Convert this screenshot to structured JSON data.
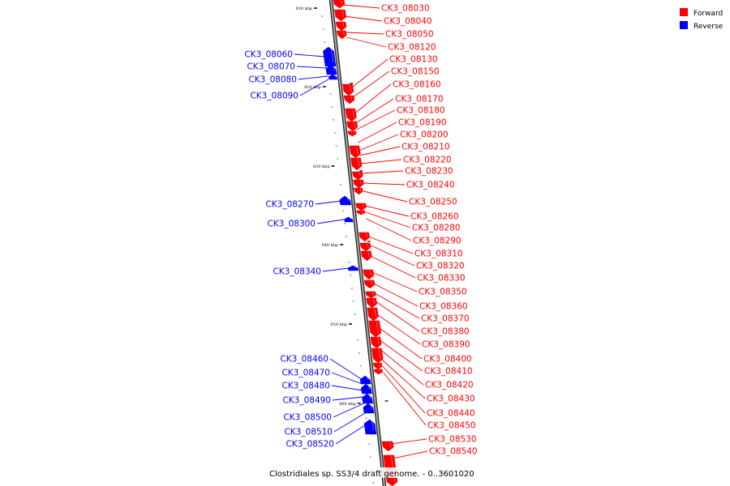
{
  "caption": "Clostridiales sp. SS3/4 draft genome. - 0..3601020",
  "legend": [
    {
      "label": "Forward",
      "color": "#ff0000"
    },
    {
      "label": "Reverse",
      "color": "#0000ff"
    }
  ],
  "colors": {
    "forward": "#ff0000",
    "reverse": "#0000ff",
    "backbone": "#888888"
  },
  "ticks": [
    "810 kbp",
    "820 kbp",
    "830 kbp",
    "840 kbp",
    "850 kbp",
    "860 kbp"
  ],
  "forward_genes": [
    "CK3_08030",
    "CK3_08040",
    "CK3_08050",
    "CK3_08120",
    "CK3_08130",
    "CK3_08150",
    "CK3_08160",
    "CK3_08170",
    "CK3_08180",
    "CK3_08190",
    "CK3_08200",
    "CK3_08210",
    "CK3_08220",
    "CK3_08230",
    "CK3_08240",
    "CK3_08250",
    "CK3_08260",
    "CK3_08280",
    "CK3_08290",
    "CK3_08310",
    "CK3_08320",
    "CK3_08330",
    "CK3_08350",
    "CK3_08360",
    "CK3_08370",
    "CK3_08380",
    "CK3_08390",
    "CK3_08400",
    "CK3_08410",
    "CK3_08420",
    "CK3_08430",
    "CK3_08440",
    "CK3_08450",
    "CK3_08530",
    "CK3_08540"
  ],
  "reverse_genes": [
    "CK3_08060",
    "CK3_08070",
    "CK3_08080",
    "CK3_08090",
    "CK3_08270",
    "CK3_08300",
    "CK3_08340",
    "CK3_08460",
    "CK3_08470",
    "CK3_08480",
    "CK3_08490",
    "CK3_08500",
    "CK3_08510",
    "CK3_08520"
  ]
}
